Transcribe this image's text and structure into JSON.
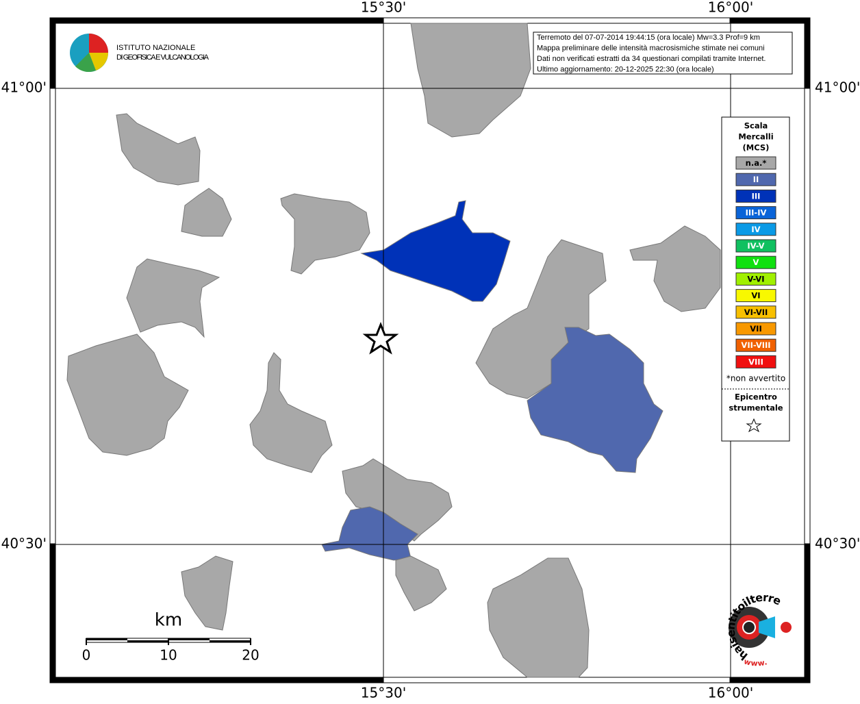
{
  "map": {
    "lon_labels": [
      "15°30'",
      "16°00'"
    ],
    "lat_labels": [
      "41°00'",
      "40°30'"
    ],
    "institute": [
      "ISTITUTO NAZIONALE",
      "DI GEOFISICA E VULCANOLOGIA"
    ],
    "info": [
      "Terremoto del 07-07-2014 19:44:15 (ora locale) Mw=3.3 Prof=9 km",
      "Mappa preliminare delle intensità macrosismiche stimate nei comuni",
      "Dati non verificati estratti da 34 questionari compilati tramite Internet.",
      "Ultimo aggiornamento: 20-12-2025 22:30 (ora locale)"
    ],
    "legend": {
      "title": [
        "Scala",
        "Mercalli",
        "(MCS)"
      ],
      "items": [
        {
          "label": "n.a.*",
          "color": "#a8a8a8"
        },
        {
          "label": "II",
          "color": "#5068ae"
        },
        {
          "label": "III",
          "color": "#0032b8"
        },
        {
          "label": "III-IV",
          "color": "#0a64d8"
        },
        {
          "label": "IV",
          "color": "#0a9ae6"
        },
        {
          "label": "IV-V",
          "color": "#10c060"
        },
        {
          "label": "V",
          "color": "#10e010"
        },
        {
          "label": "V-VI",
          "color": "#a0f000"
        },
        {
          "label": "VI",
          "color": "#f8f800"
        },
        {
          "label": "VI-VII",
          "color": "#f8c000"
        },
        {
          "label": "VII",
          "color": "#f89800"
        },
        {
          "label": "VII-VIII",
          "color": "#f06000"
        },
        {
          "label": "VIII",
          "color": "#f01010"
        }
      ],
      "note": "*non avvertito",
      "epicenter": [
        "Epicentro",
        "strumentale"
      ]
    },
    "scale_bar": {
      "unit": "km",
      "ticks": [
        0,
        10,
        20
      ]
    },
    "site_logo": "haisentitoilterremoto.it",
    "site_logo_prefix": "www."
  }
}
